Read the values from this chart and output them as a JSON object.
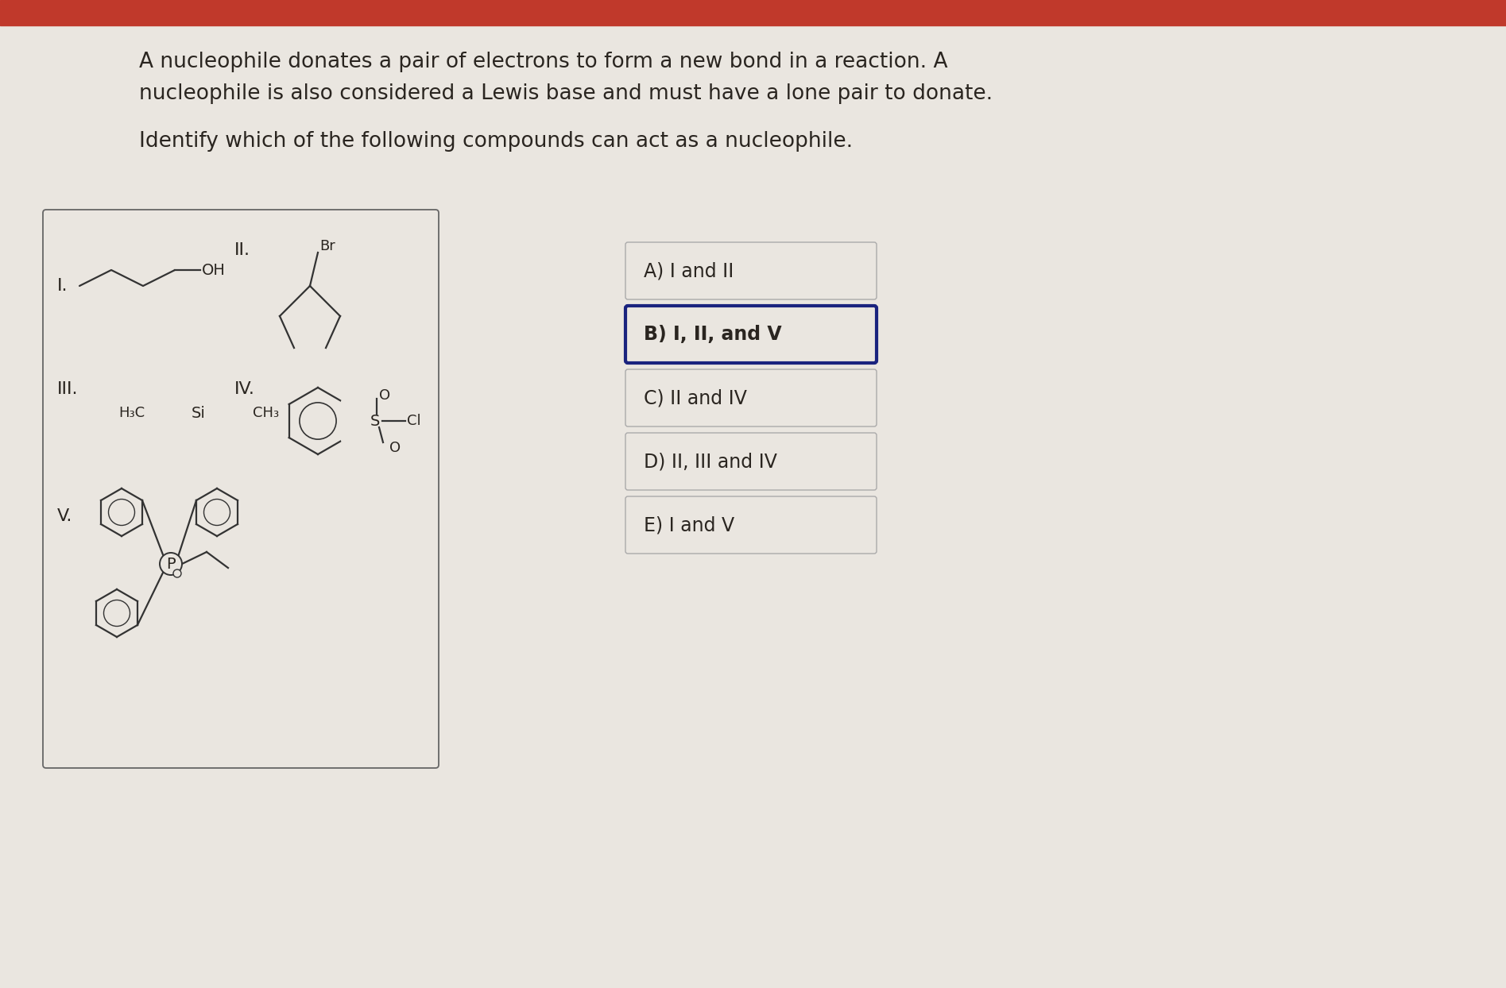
{
  "bg_color": "#eae6e0",
  "top_bar_color": "#c0392b",
  "text_color": "#2a2520",
  "paragraph1_line1": "A nucleophile donates a pair of electrons to form a new bond in a reaction. A",
  "paragraph1_line2": "nucleophile is also considered a Lewis base and must have a lone pair to donate.",
  "paragraph2": "Identify which of the following compounds can act as a nucleophile.",
  "box_bg": "#eae6e0",
  "box_border": "#666666",
  "answer_box_bg": "#eae6e0",
  "answer_box_border": "#aaaaaa",
  "answer_b_border": "#1a237e",
  "answers": [
    "A) I and II",
    "B) I, II, and V",
    "C) II and IV",
    "D) II, III and IV",
    "E) I and V"
  ],
  "answer_bold_idx": 1,
  "font_size_para": 19,
  "font_size_answer": 17,
  "font_size_label": 16,
  "font_size_struct": 13
}
